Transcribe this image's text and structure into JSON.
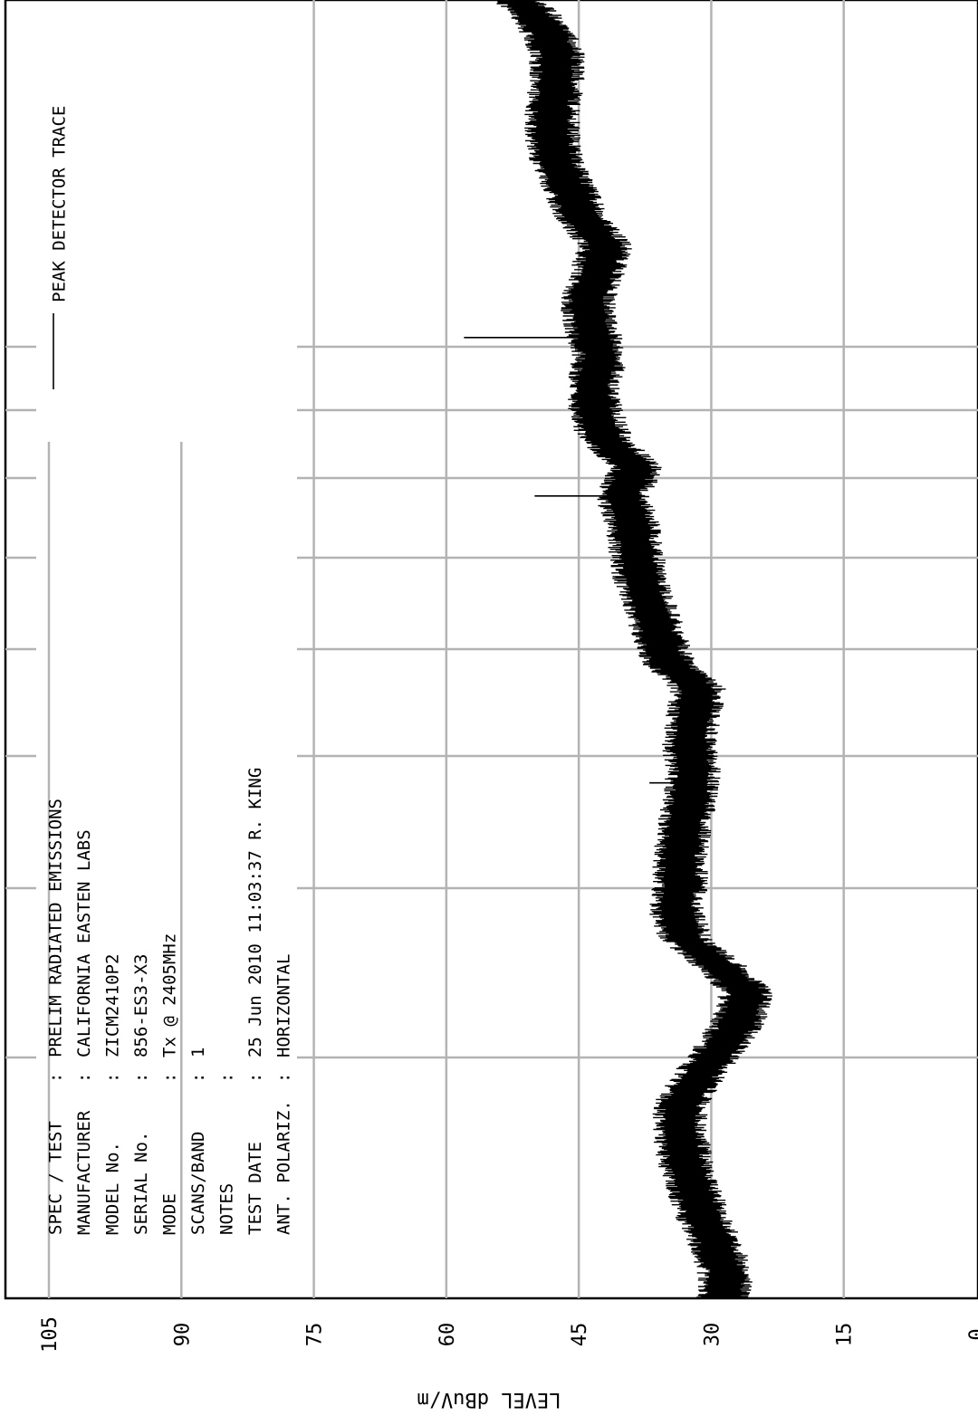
{
  "chart_data": {
    "type": "line",
    "ylabel": "LEVEL dBuV/m",
    "ylim": [
      0,
      110
    ],
    "y_ticks": [
      "105",
      "90",
      "75",
      "60",
      "45",
      "30",
      "15",
      "0"
    ],
    "grid": true,
    "legend": {
      "placement": "top-right",
      "entries": [
        {
          "label": "PEAK  DETECTOR TRACE"
        }
      ]
    },
    "series": [
      {
        "name": "PEAK  DETECTOR TRACE",
        "values": [
          [
            0.0,
            28.5
          ],
          [
            0.021,
            28.5
          ],
          [
            0.042,
            29.5
          ],
          [
            0.064,
            31
          ],
          [
            0.085,
            32
          ],
          [
            0.106,
            33
          ],
          [
            0.128,
            33.5
          ],
          [
            0.149,
            33.5
          ],
          [
            0.171,
            31.5
          ],
          [
            0.192,
            29
          ],
          [
            0.213,
            27
          ],
          [
            0.235,
            26
          ],
          [
            0.256,
            29
          ],
          [
            0.277,
            33
          ],
          [
            0.299,
            34
          ],
          [
            0.32,
            33.5
          ],
          [
            0.341,
            33.5
          ],
          [
            0.363,
            33
          ],
          [
            0.384,
            32.5
          ],
          [
            0.405,
            32
          ],
          [
            0.426,
            32.5
          ],
          [
            0.448,
            32
          ],
          [
            0.469,
            31.5
          ],
          [
            0.49,
            35
          ],
          [
            0.512,
            36
          ],
          [
            0.533,
            37
          ],
          [
            0.554,
            38
          ],
          [
            0.576,
            38.5
          ],
          [
            0.597,
            39
          ],
          [
            0.618,
            40
          ],
          [
            0.64,
            38.5
          ],
          [
            0.661,
            42
          ],
          [
            0.682,
            43
          ],
          [
            0.704,
            43.5
          ],
          [
            0.725,
            42.5
          ],
          [
            0.746,
            43.5
          ],
          [
            0.768,
            44
          ],
          [
            0.789,
            43
          ],
          [
            0.81,
            42
          ],
          [
            0.832,
            44.5
          ],
          [
            0.853,
            46
          ],
          [
            0.874,
            47.5
          ],
          [
            0.896,
            48
          ],
          [
            0.917,
            48
          ],
          [
            0.938,
            47.5
          ],
          [
            0.96,
            47.5
          ],
          [
            0.981,
            49
          ],
          [
            1.0,
            52
          ]
        ]
      }
    ],
    "spikes": [
      {
        "x": 0.397,
        "y": 37
      },
      {
        "x": 0.618,
        "y": 50
      },
      {
        "x": 0.74,
        "y": 58
      }
    ],
    "info_block": [
      {
        "label": "SPEC / TEST",
        "value": "PRELIM RADIATED EMISSIONS"
      },
      {
        "label": "MANUFACTURER",
        "value": "CALIFORNIA EASTEN LABS"
      },
      {
        "label": "MODEL No.",
        "value": "ZICM2410P2"
      },
      {
        "label": "SERIAL No.",
        "value": "856-ES3-X3"
      },
      {
        "label": "MODE",
        "value": "Tx @ 2405MHz"
      },
      {
        "label": "SCANS/BAND",
        "value": "1"
      },
      {
        "label": "NOTES",
        "value": ""
      },
      {
        "label": "TEST DATE",
        "value": "25 Jun 2010 11:03:37  R. KING"
      },
      {
        "label": "ANT. POLARIZ.",
        "value": "HORIZONTAL"
      }
    ]
  }
}
